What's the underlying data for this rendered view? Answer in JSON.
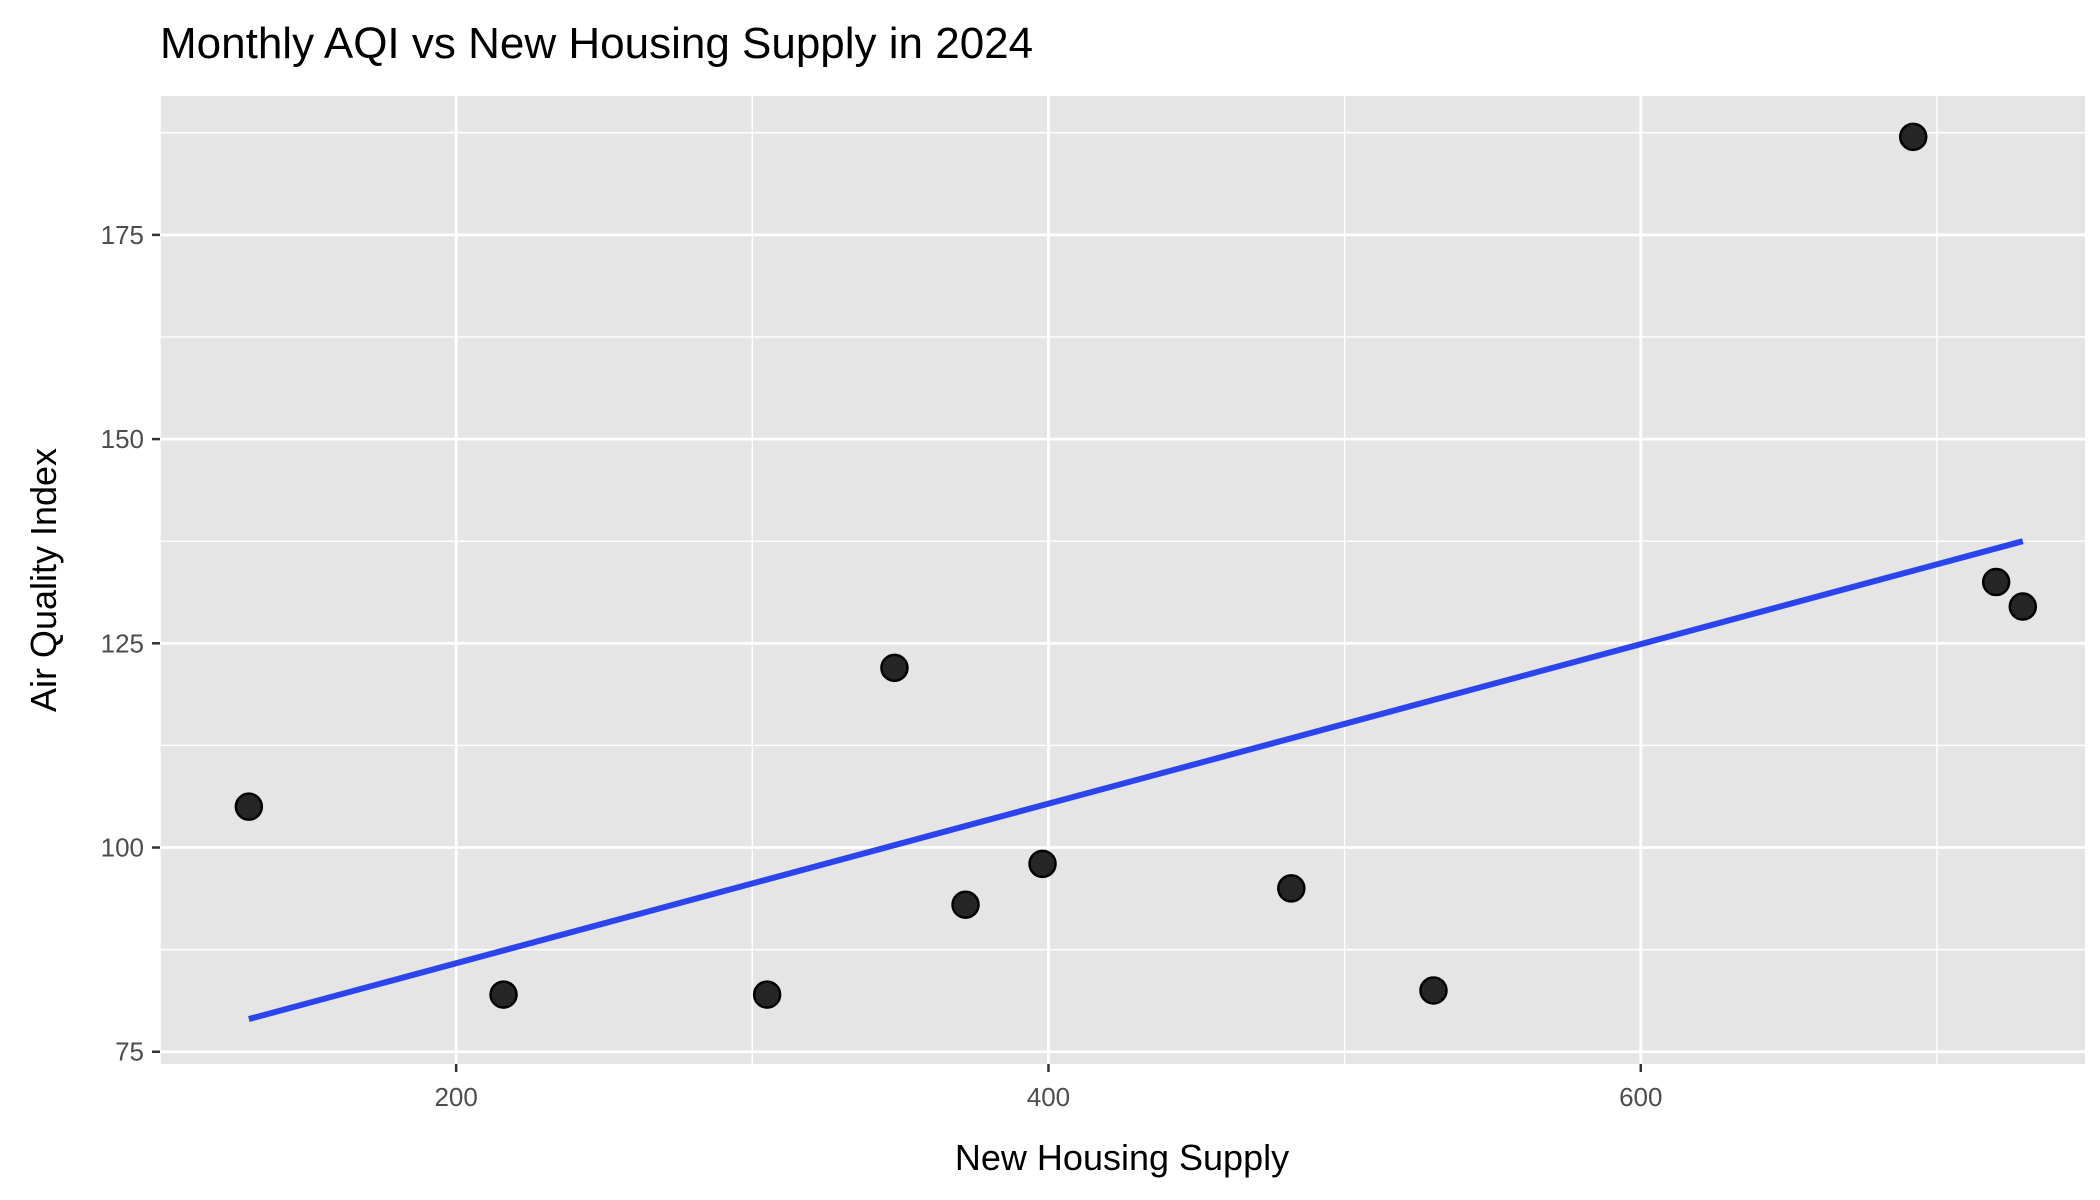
{
  "chart_data": {
    "type": "scatter",
    "title": "Monthly AQI vs New Housing Supply in 2024",
    "xlabel": "New Housing Supply",
    "ylabel": "Air Quality Index",
    "xlim": [
      100,
      750
    ],
    "ylim": [
      73.5,
      192
    ],
    "x_ticks": [
      200,
      400,
      600
    ],
    "x_tick_labels": [
      "200",
      "400",
      "600"
    ],
    "y_ticks": [
      75,
      100,
      125,
      150,
      175
    ],
    "y_tick_labels": [
      "75",
      "100",
      "125",
      "150",
      "175"
    ],
    "grid": true,
    "points": [
      {
        "x": 130,
        "y": 105
      },
      {
        "x": 216,
        "y": 82
      },
      {
        "x": 305,
        "y": 82
      },
      {
        "x": 348,
        "y": 122
      },
      {
        "x": 372,
        "y": 93
      },
      {
        "x": 398,
        "y": 98
      },
      {
        "x": 482,
        "y": 95
      },
      {
        "x": 530,
        "y": 82.5
      },
      {
        "x": 692,
        "y": 187
      },
      {
        "x": 720,
        "y": 132.5
      },
      {
        "x": 729,
        "y": 129.5
      }
    ],
    "trend_line": {
      "x": [
        130,
        729
      ],
      "y": [
        79,
        137.5
      ]
    },
    "colors": {
      "panel_background": "#e5e5e5",
      "grid": "#ffffff",
      "point_fill": "#262626",
      "point_stroke": "#000000",
      "trend_line": "#2a45f0"
    }
  }
}
